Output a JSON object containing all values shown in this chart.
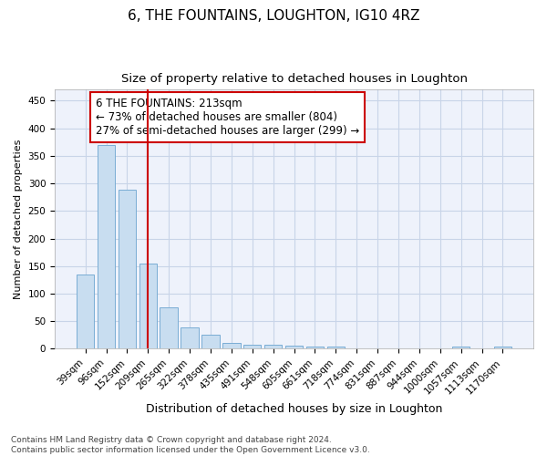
{
  "title": "6, THE FOUNTAINS, LOUGHTON, IG10 4RZ",
  "subtitle": "Size of property relative to detached houses in Loughton",
  "xlabel": "Distribution of detached houses by size in Loughton",
  "ylabel": "Number of detached properties",
  "bar_labels": [
    "39sqm",
    "96sqm",
    "152sqm",
    "209sqm",
    "265sqm",
    "322sqm",
    "378sqm",
    "435sqm",
    "491sqm",
    "548sqm",
    "605sqm",
    "661sqm",
    "718sqm",
    "774sqm",
    "831sqm",
    "887sqm",
    "944sqm",
    "1000sqm",
    "1057sqm",
    "1113sqm",
    "1170sqm"
  ],
  "bar_values": [
    135,
    370,
    288,
    155,
    75,
    38,
    25,
    10,
    8,
    7,
    5,
    4,
    4,
    0,
    0,
    0,
    0,
    0,
    4,
    0,
    4
  ],
  "bar_color": "#c8ddf0",
  "bar_edgecolor": "#7aadd4",
  "grid_color": "#c8d4e8",
  "bg_color": "#eef2fb",
  "vline_x": 3,
  "vline_color": "#cc0000",
  "annotation_text": "6 THE FOUNTAINS: 213sqm\n← 73% of detached houses are smaller (804)\n27% of semi-detached houses are larger (299) →",
  "annotation_box_facecolor": "#ffffff",
  "annotation_box_edgecolor": "#cc0000",
  "ylim": [
    0,
    470
  ],
  "yticks": [
    0,
    50,
    100,
    150,
    200,
    250,
    300,
    350,
    400,
    450
  ],
  "footnote": "Contains HM Land Registry data © Crown copyright and database right 2024.\nContains public sector information licensed under the Open Government Licence v3.0.",
  "title_fontsize": 11,
  "subtitle_fontsize": 9.5,
  "xlabel_fontsize": 9,
  "ylabel_fontsize": 8,
  "tick_fontsize": 7.5,
  "annot_fontsize": 8.5,
  "footnote_fontsize": 6.5
}
